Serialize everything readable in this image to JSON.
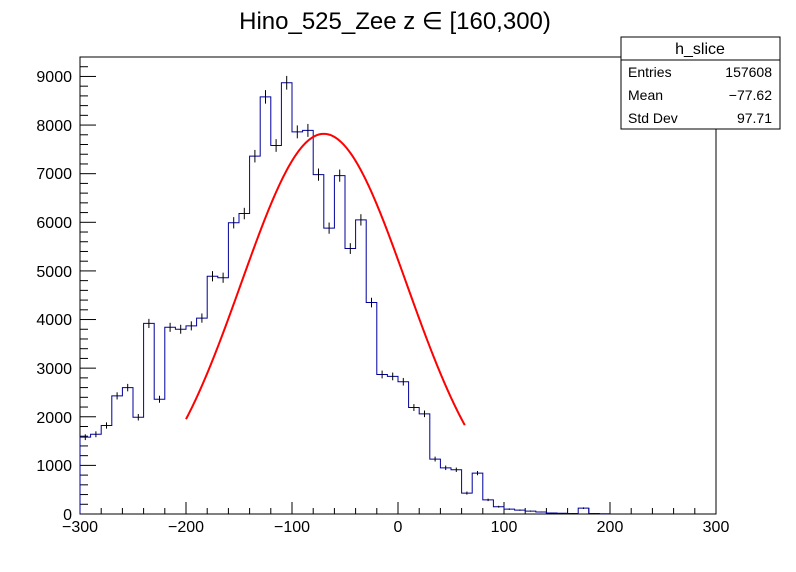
{
  "chart_data": {
    "type": "histogram",
    "title": "Hino_525_Zee z  ∈ [160,300)",
    "xlabel": "",
    "ylabel": "",
    "xlim": [
      -300,
      300
    ],
    "ylim": [
      0,
      9400
    ],
    "x_ticks": [
      "−300",
      "−200",
      "−100",
      "0",
      "100",
      "200",
      "300"
    ],
    "x_tick_values": [
      -300,
      -200,
      -100,
      0,
      100,
      200,
      300
    ],
    "y_ticks": [
      "0",
      "1000",
      "2000",
      "3000",
      "4000",
      "5000",
      "6000",
      "7000",
      "8000",
      "9000"
    ],
    "y_tick_values": [
      0,
      1000,
      2000,
      3000,
      4000,
      5000,
      6000,
      7000,
      8000,
      9000
    ],
    "bin_width": 10,
    "bin_edges_start": -300,
    "values": [
      1580,
      1640,
      1820,
      2430,
      2600,
      1990,
      3920,
      2360,
      3840,
      3800,
      3870,
      4030,
      4890,
      4860,
      5990,
      6180,
      7360,
      8580,
      7580,
      8870,
      7860,
      7890,
      6980,
      5880,
      6960,
      5460,
      6050,
      4350,
      2870,
      2830,
      2720,
      2190,
      2060,
      1130,
      950,
      910,
      430,
      840,
      290,
      150,
      100,
      80,
      60,
      40,
      20,
      15,
      10,
      120,
      10,
      5
    ],
    "line_color": "#000099",
    "fit": {
      "color": "#ff0000",
      "type": "gaussian",
      "constant": 7820,
      "mean": -70,
      "sigma": 78,
      "range": [
        -200,
        63
      ]
    },
    "stats_box": {
      "name": "h_slice",
      "rows": [
        {
          "label": "Entries",
          "value": "157608"
        },
        {
          "label": "Mean",
          "value": "−77.62"
        },
        {
          "label": "Std Dev",
          "value": "97.71"
        }
      ]
    }
  }
}
